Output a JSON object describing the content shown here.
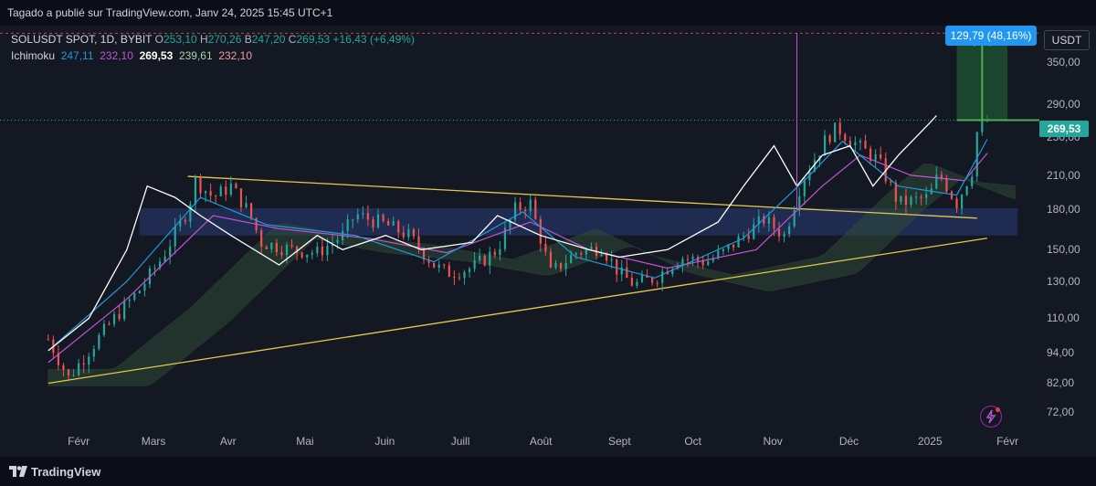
{
  "header": {
    "published": "Tagado a publié sur TradingView.com, Janv 24, 2025 15:45 UTC+1"
  },
  "legend": {
    "symbol": "SOLUSDT SPOT, 1D, BYBIT",
    "o_label": "O",
    "o_value": "253,10",
    "h_label": "H",
    "h_value": "270,26",
    "b_label": "B",
    "b_value": "247,20",
    "c_label": "C",
    "c_value": "269,53",
    "change": "+16,43 (+6,49%)",
    "indicator": "Ichimoku",
    "ichimoku_values": [
      "247,11",
      "232,10",
      "269,53",
      "239,61",
      "232,10"
    ]
  },
  "currency": "USDT",
  "measure_label": "129,79 (48,16%)",
  "last_price": "269,53",
  "footer": {
    "brand": "TradingView"
  },
  "colors": {
    "up": "#26a69a",
    "down": "#ef5350",
    "accent_blue": "#2196f3",
    "trendline": "#e6c84a",
    "zone": "#283c78",
    "comparison": "#ffffff",
    "conversion": "#1e9bd7",
    "base": "#c056d0"
  },
  "chart_data": {
    "type": "candlestick",
    "y_scale": "log",
    "ylim": [
      66,
      410
    ],
    "yticks": [
      "72,00",
      "82,00",
      "94,00",
      "110,00",
      "130,00",
      "150,00",
      "180,00",
      "210,00",
      "250,00",
      "290,00",
      "350,00"
    ],
    "ytick_values": [
      72,
      82,
      94,
      110,
      130,
      150,
      180,
      210,
      250,
      290,
      350
    ],
    "xticks": [
      "Févr",
      "Mars",
      "Avr",
      "Mai",
      "Juin",
      "Juill",
      "Août",
      "Sept",
      "Oct",
      "Nov",
      "Déc",
      "2025",
      "Févr"
    ],
    "grid": false,
    "close_path": [
      [
        "2024-01-20",
        100
      ],
      [
        "2024-01-28",
        84
      ],
      [
        "2024-02-05",
        95
      ],
      [
        "2024-02-15",
        110
      ],
      [
        "2024-02-25",
        125
      ],
      [
        "2024-03-05",
        145
      ],
      [
        "2024-03-15",
        180
      ],
      [
        "2024-03-18",
        205
      ],
      [
        "2024-03-25",
        190
      ],
      [
        "2024-04-01",
        200
      ],
      [
        "2024-04-08",
        178
      ],
      [
        "2024-04-13",
        155
      ],
      [
        "2024-04-25",
        150
      ],
      [
        "2024-05-05",
        148
      ],
      [
        "2024-05-15",
        160
      ],
      [
        "2024-05-20",
        176
      ],
      [
        "2024-06-01",
        168
      ],
      [
        "2024-06-10",
        160
      ],
      [
        "2024-06-20",
        140
      ],
      [
        "2024-06-25",
        135
      ],
      [
        "2024-07-05",
        138
      ],
      [
        "2024-07-15",
        150
      ],
      [
        "2024-07-22",
        180
      ],
      [
        "2024-07-28",
        185
      ],
      [
        "2024-08-05",
        135
      ],
      [
        "2024-08-15",
        148
      ],
      [
        "2024-08-25",
        152
      ],
      [
        "2024-09-01",
        135
      ],
      [
        "2024-09-07",
        128
      ],
      [
        "2024-09-15",
        132
      ],
      [
        "2024-09-25",
        145
      ],
      [
        "2024-10-05",
        142
      ],
      [
        "2024-10-12",
        148
      ],
      [
        "2024-10-20",
        160
      ],
      [
        "2024-10-28",
        172
      ],
      [
        "2024-11-05",
        160
      ],
      [
        "2024-11-12",
        205
      ],
      [
        "2024-11-22",
        250
      ],
      [
        "2024-11-26",
        260
      ],
      [
        "2024-12-05",
        238
      ],
      [
        "2024-12-12",
        225
      ],
      [
        "2024-12-20",
        185
      ],
      [
        "2025-01-01",
        190
      ],
      [
        "2025-01-05",
        212
      ],
      [
        "2025-01-12",
        185
      ],
      [
        "2025-01-18",
        215
      ],
      [
        "2025-01-20",
        255
      ],
      [
        "2025-01-24",
        269.53
      ]
    ],
    "comparison_path": [
      [
        "2024-01-20",
        95
      ],
      [
        "2024-02-05",
        110
      ],
      [
        "2024-02-20",
        150
      ],
      [
        "2024-02-28",
        200
      ],
      [
        "2024-03-10",
        190
      ],
      [
        "2024-03-20",
        175
      ],
      [
        "2024-04-01",
        160
      ],
      [
        "2024-04-20",
        140
      ],
      [
        "2024-05-05",
        160
      ],
      [
        "2024-05-15",
        150
      ],
      [
        "2024-06-01",
        160
      ],
      [
        "2024-06-15",
        150
      ],
      [
        "2024-07-05",
        155
      ],
      [
        "2024-07-15",
        175
      ],
      [
        "2024-08-01",
        160
      ],
      [
        "2024-08-20",
        150
      ],
      [
        "2024-09-01",
        145
      ],
      [
        "2024-09-20",
        150
      ],
      [
        "2024-10-10",
        170
      ],
      [
        "2024-10-20",
        200
      ],
      [
        "2024-11-01",
        240
      ],
      [
        "2024-11-10",
        200
      ],
      [
        "2024-11-20",
        230
      ],
      [
        "2024-12-01",
        240
      ],
      [
        "2024-12-10",
        200
      ],
      [
        "2024-12-20",
        230
      ],
      [
        "2025-01-01",
        265
      ],
      [
        "2025-01-04",
        275
      ]
    ],
    "conversion_path": [
      [
        "2024-01-20",
        95
      ],
      [
        "2024-02-20",
        130
      ],
      [
        "2024-03-20",
        190
      ],
      [
        "2024-04-15",
        168
      ],
      [
        "2024-05-20",
        160
      ],
      [
        "2024-06-20",
        142
      ],
      [
        "2024-07-25",
        178
      ],
      [
        "2024-08-15",
        145
      ],
      [
        "2024-09-15",
        132
      ],
      [
        "2024-10-20",
        158
      ],
      [
        "2024-11-15",
        210
      ],
      [
        "2024-11-28",
        245
      ],
      [
        "2024-12-20",
        200
      ],
      [
        "2025-01-12",
        192
      ],
      [
        "2025-01-24",
        247.11
      ]
    ],
    "base_path": [
      [
        "2024-01-20",
        90
      ],
      [
        "2024-02-20",
        120
      ],
      [
        "2024-03-25",
        175
      ],
      [
        "2024-04-20",
        165
      ],
      [
        "2024-05-25",
        158
      ],
      [
        "2024-06-25",
        148
      ],
      [
        "2024-07-28",
        170
      ],
      [
        "2024-08-20",
        150
      ],
      [
        "2024-09-20",
        138
      ],
      [
        "2024-10-25",
        150
      ],
      [
        "2024-11-20",
        200
      ],
      [
        "2024-12-05",
        230
      ],
      [
        "2024-12-25",
        210
      ],
      [
        "2025-01-15",
        205
      ],
      [
        "2025-01-24",
        232.1
      ]
    ],
    "trendlines": [
      {
        "from": [
          "2024-03-15",
          209
        ],
        "to": [
          "2025-01-20",
          173
        ]
      },
      {
        "from": [
          "2024-01-20",
          82
        ],
        "to": [
          "2025-01-24",
          158
        ]
      }
    ],
    "zone": {
      "from": "2024-02-25",
      "to": "2025-02-05",
      "low": 160,
      "high": 181
    },
    "measure": {
      "from_date": "2025-01-12",
      "to_date": "2025-02-01",
      "low": 269.53,
      "high": 399.32
    },
    "dashed_level": 399.32,
    "last_price": 269.53,
    "bars_sample_open_close": [
      [
        "2025-01-24",
        253.1,
        269.53,
        270.26,
        247.2
      ]
    ]
  }
}
